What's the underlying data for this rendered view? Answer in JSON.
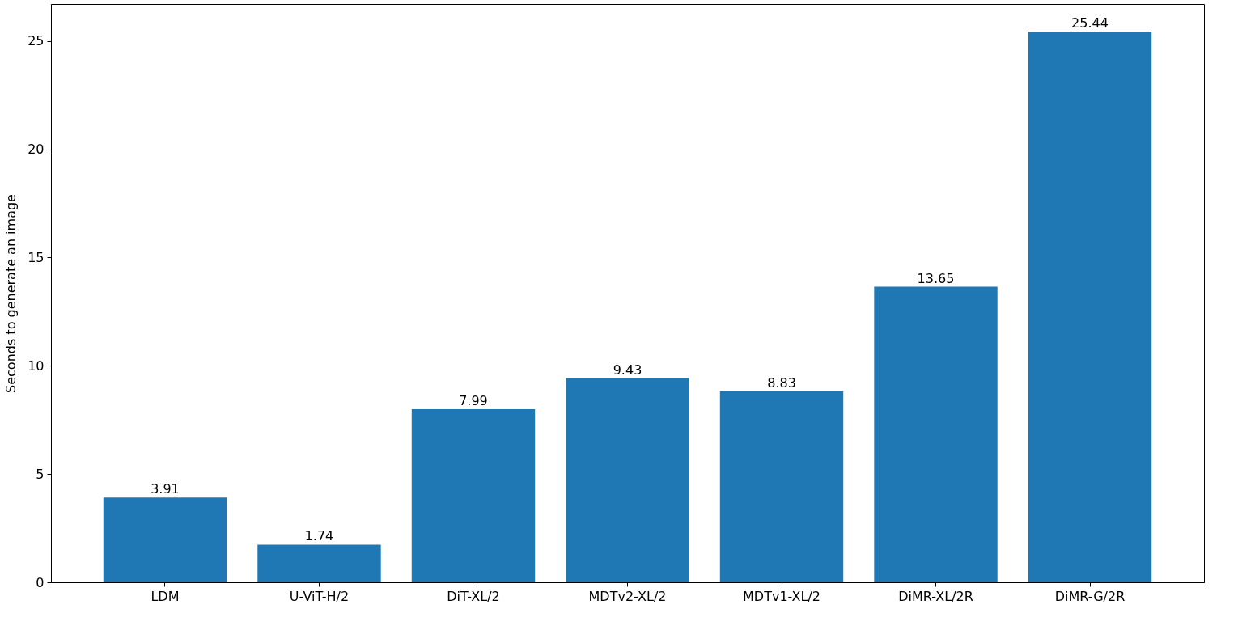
{
  "chart_data": {
    "type": "bar",
    "ylabel": "Seconds to generate an image",
    "categories": [
      "LDM",
      "U-ViT-H/2",
      "DiT-XL/2",
      "MDTv2-XL/2",
      "MDTv1-XL/2",
      "DiMR-XL/2R",
      "DiMR-G/2R"
    ],
    "values": [
      3.91,
      1.74,
      7.99,
      9.43,
      8.83,
      13.65,
      25.44
    ],
    "color": "#1f77b4",
    "ylim": [
      0,
      26.71
    ],
    "yticks": [
      0,
      5,
      10,
      15,
      20,
      25
    ],
    "data_labels": true,
    "grid": false
  }
}
